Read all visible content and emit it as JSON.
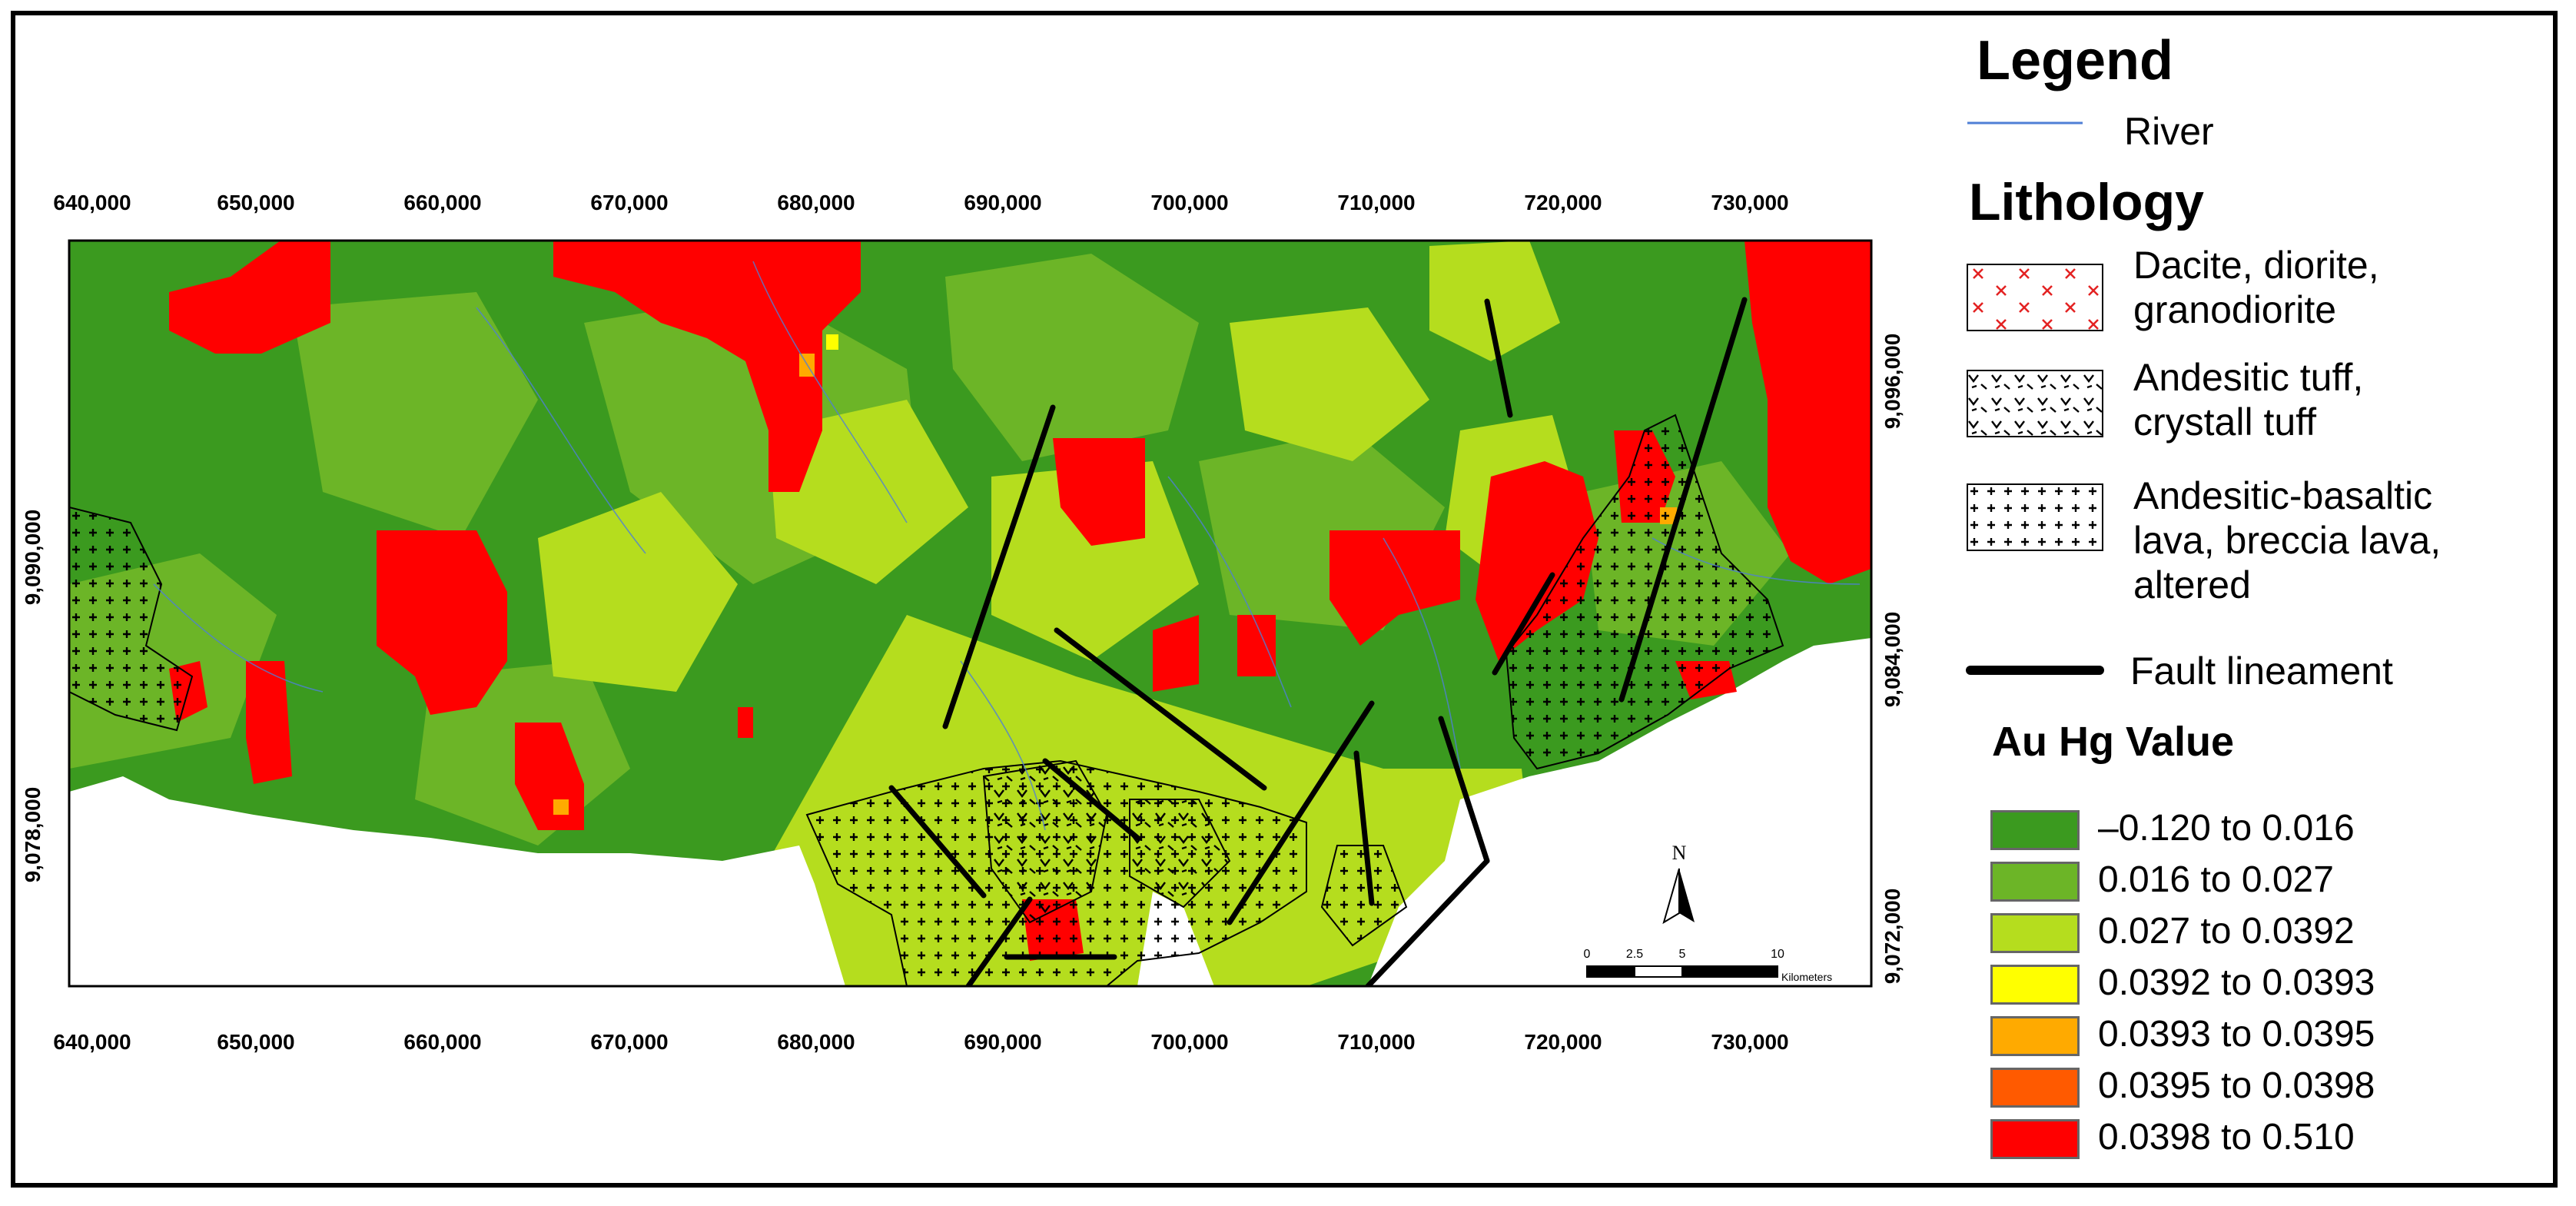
{
  "legend": {
    "title": "Legend",
    "river_label": "River",
    "lithology_heading": "Lithology",
    "lithology": [
      {
        "lines": [
          "Dacite, diorite,",
          "granodiorite"
        ],
        "pattern": "red-x"
      },
      {
        "lines": [
          "Andesitic tuff,",
          "crystall tuff"
        ],
        "pattern": "v-dash"
      },
      {
        "lines": [
          "Andesitic-basaltic",
          "lava, breccia lava,",
          "altered"
        ],
        "pattern": "plus"
      }
    ],
    "fault_label": "Fault lineament",
    "value_heading": "Au Hg Value",
    "classes": [
      {
        "label": "–0.120 to 0.016",
        "color": "#3b9a1f"
      },
      {
        "label": "0.016 to 0.027",
        "color": "#6cb527"
      },
      {
        "label": "0.027 to 0.0392",
        "color": "#b5dd1e"
      },
      {
        "label": "0.0392 to 0.0393",
        "color": "#ffff00"
      },
      {
        "label": "0.0393 to 0.0395",
        "color": "#ffaa00"
      },
      {
        "label": "0.0395 to 0.0398",
        "color": "#ff5a00"
      },
      {
        "label": "0.0398 to 0.510",
        "color": "#ff0000"
      }
    ]
  },
  "map": {
    "x_ticks": [
      "640,000",
      "650,000",
      "660,000",
      "670,000",
      "680,000",
      "690,000",
      "700,000",
      "710,000",
      "720,000",
      "730,000"
    ],
    "y_ticks_left": [
      "9,090,000",
      "9,078,000"
    ],
    "y_ticks_right": [
      "9,096,000",
      "9,084,000",
      "9,072,000"
    ],
    "north_label": "N",
    "scale_numbers": [
      "0",
      "2.5",
      "5",
      "10"
    ],
    "scale_unit": "Kilometers",
    "colors": {
      "sea": "#ffffff",
      "river": "#4f7fd6",
      "fault": "#000000"
    }
  }
}
